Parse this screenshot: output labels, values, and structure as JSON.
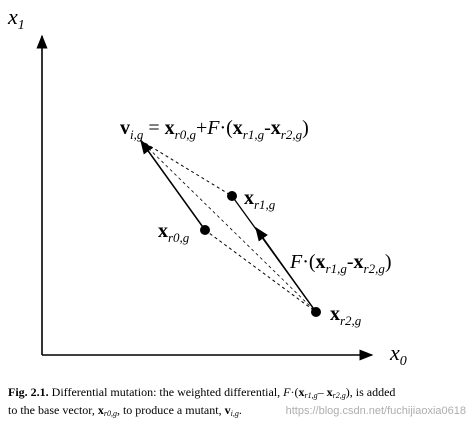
{
  "axes": {
    "y_label": {
      "base": "x",
      "sub": "1"
    },
    "x_label": {
      "base": "x",
      "sub": "0"
    }
  },
  "equation": {
    "v": "v",
    "v_sub": "i,g",
    "eq": " = ",
    "x": "x",
    "x_sub": "r0,g",
    "plus": "+",
    "F": "F",
    "dot": "·(",
    "x1": "x",
    "x1_sub": "r1,g",
    "minus": "-",
    "x2": "x",
    "x2_sub": "r2,g",
    "close": ")"
  },
  "points": [
    {
      "base": "x",
      "sub": "r1,g"
    },
    {
      "base": "x",
      "sub": "r0,g"
    },
    {
      "base": "x",
      "sub": "r2,g"
    }
  ],
  "difference": {
    "F": "F",
    "dot": "·(",
    "x1": "x",
    "x1_sub": "r1,g",
    "minus": "-",
    "x2": "x",
    "x2_sub": "r2,g",
    "close": ")"
  },
  "caption": {
    "parts": [
      "Fig. 2.1.",
      " Differential mutation: the weighted differential, ",
      "F",
      "·(",
      "x",
      "r1,g",
      "– ",
      "x",
      "r2,g",
      "), is added",
      "to the base vector, ",
      "x",
      "r0,g",
      ", to produce a mutant, ",
      "v",
      "i,g",
      "."
    ]
  },
  "watermark": "https://blog.csdn.net/fuchijiaoxia0618"
}
